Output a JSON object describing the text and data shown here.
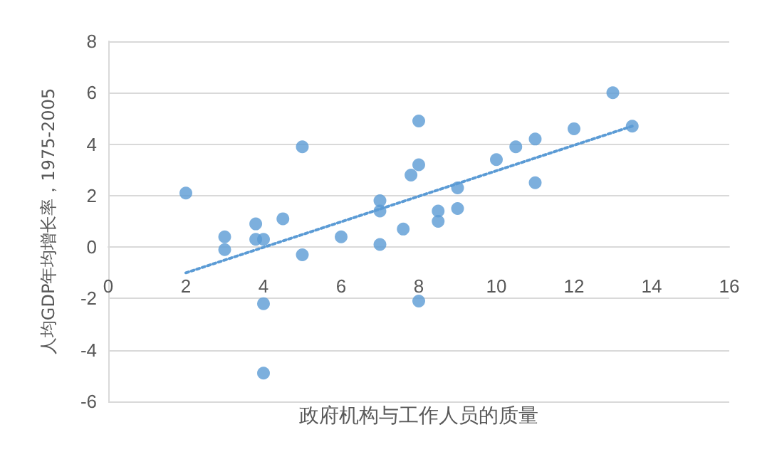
{
  "chart_data": {
    "type": "scatter",
    "xlabel": "政府机构与工作人员的质量",
    "ylabel": "人均GDP年均增长率，1975-2005",
    "xlim": [
      0,
      16
    ],
    "xticks": [
      0,
      2,
      4,
      6,
      8,
      10,
      12,
      14,
      16
    ],
    "ylim": [
      -6,
      8
    ],
    "yticks": [
      -6,
      -4,
      -2,
      0,
      2,
      4,
      6,
      8
    ],
    "grid": "y",
    "marker": "circle",
    "series": [
      {
        "color": "#5b9bd5",
        "x": [
          2,
          3,
          3,
          3.8,
          3.8,
          4,
          4,
          4,
          4.5,
          5,
          5,
          6,
          7,
          7,
          7,
          7.6,
          7.8,
          8,
          8,
          8,
          8.5,
          8.5,
          9,
          9,
          10,
          10.5,
          11,
          11,
          12,
          13,
          13.5
        ],
        "values": [
          2.1,
          0.4,
          -0.1,
          0.9,
          0.3,
          0.3,
          -2.2,
          -4.9,
          1.1,
          3.9,
          -0.3,
          0.4,
          1.8,
          1.4,
          0.1,
          0.7,
          2.8,
          4.9,
          3.2,
          -2.1,
          1.4,
          1.0,
          2.3,
          1.5,
          3.4,
          3.9,
          4.2,
          2.5,
          4.6,
          6.0,
          4.7
        ]
      },
      {
        "type": "line",
        "color": "#5b9bd5",
        "line_style": "dotted",
        "marker": "none",
        "x": [
          2,
          13.5
        ],
        "values": [
          -1.0,
          4.7
        ]
      }
    ]
  }
}
